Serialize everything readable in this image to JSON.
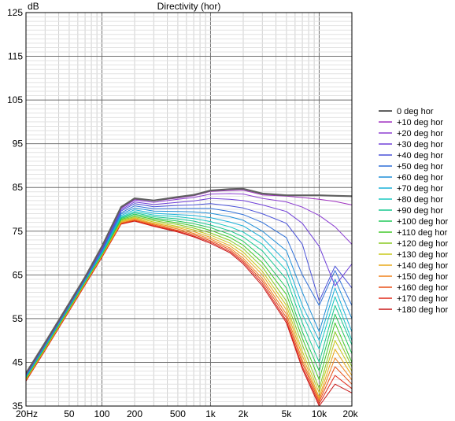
{
  "chart_data": {
    "type": "line",
    "title": "Directivity (hor)",
    "ylabel": "dB",
    "xlabel": "",
    "x_scale": "log",
    "xlim": [
      20,
      20000
    ],
    "ylim": [
      35,
      125
    ],
    "grid": true,
    "legend_position": "right",
    "x_tick_labels": [
      {
        "value": 20,
        "label": "20Hz"
      },
      {
        "value": 50,
        "label": "50"
      },
      {
        "value": 100,
        "label": "100"
      },
      {
        "value": 200,
        "label": "200"
      },
      {
        "value": 500,
        "label": "500"
      },
      {
        "value": 1000,
        "label": "1k"
      },
      {
        "value": 2000,
        "label": "2k"
      },
      {
        "value": 5000,
        "label": "5k"
      },
      {
        "value": 10000,
        "label": "10k"
      },
      {
        "value": 20000,
        "label": "20k"
      }
    ],
    "y_tick_labels": [
      125,
      115,
      105,
      95,
      85,
      75,
      65,
      55,
      45,
      35
    ],
    "series": [
      {
        "name": "0 deg hor",
        "color": "#606060",
        "x": [
          20,
          30,
          50,
          70,
          100,
          150,
          200,
          300,
          500,
          700,
          1000,
          1500,
          2000,
          3000,
          5000,
          7000,
          10000,
          14000,
          20000
        ],
        "y": [
          42.5,
          49.5,
          58.5,
          64.5,
          71.5,
          80.5,
          82.5,
          82,
          82.8,
          83.3,
          84.3,
          84.6,
          84.7,
          83.6,
          83.2,
          83.2,
          83.2,
          83.1,
          83.0
        ]
      },
      {
        "name": "+10 deg hor",
        "color": "#a030c0",
        "x": [
          20,
          30,
          50,
          70,
          100,
          150,
          200,
          300,
          500,
          700,
          1000,
          1500,
          2000,
          3000,
          5000,
          7000,
          10000,
          14000,
          20000
        ],
        "y": [
          42.4,
          49.4,
          58.4,
          64.4,
          71.4,
          80.4,
          82.3,
          81.9,
          82.6,
          83.1,
          84.1,
          84.3,
          84.4,
          83.3,
          83.0,
          82.7,
          82.3,
          81.8,
          81.0
        ]
      },
      {
        "name": "+20 deg hor",
        "color": "#8d3fd2",
        "x": [
          20,
          30,
          50,
          70,
          100,
          150,
          200,
          300,
          500,
          700,
          1000,
          1500,
          2000,
          3000,
          5000,
          7000,
          10000,
          14000,
          20000
        ],
        "y": [
          42.3,
          49.3,
          58.3,
          64.3,
          71.2,
          80.2,
          82.1,
          81.6,
          82.3,
          82.7,
          83.5,
          83.6,
          83.5,
          82.5,
          81.7,
          80.5,
          78.6,
          76.0,
          72.0
        ]
      },
      {
        "name": "+30 deg hor",
        "color": "#7040d8",
        "x": [
          20,
          30,
          50,
          70,
          100,
          150,
          200,
          300,
          500,
          700,
          1000,
          1500,
          2000,
          3000,
          5000,
          7000,
          10000,
          14000,
          20000
        ],
        "y": [
          42.2,
          49.2,
          58.2,
          64.2,
          71.0,
          79.9,
          81.7,
          81.1,
          81.6,
          81.9,
          82.5,
          82.3,
          82.0,
          81.0,
          79.5,
          76.8,
          71.5,
          62.5,
          67.5
        ]
      },
      {
        "name": "+40 deg hor",
        "color": "#4a52d8",
        "x": [
          20,
          30,
          50,
          70,
          100,
          150,
          200,
          300,
          500,
          700,
          1000,
          1500,
          2000,
          3000,
          5000,
          7000,
          10000,
          14000,
          20000
        ],
        "y": [
          42.1,
          49.1,
          58.1,
          64.1,
          70.8,
          79.6,
          81.3,
          80.6,
          80.9,
          81.0,
          81.3,
          80.8,
          80.3,
          79.0,
          76.8,
          72.0,
          59.0,
          67.0,
          62.0
        ]
      },
      {
        "name": "+50 deg hor",
        "color": "#2f6fd8",
        "x": [
          20,
          30,
          50,
          70,
          100,
          150,
          200,
          300,
          500,
          700,
          1000,
          1500,
          2000,
          3000,
          5000,
          7000,
          10000,
          14000,
          20000
        ],
        "y": [
          42.0,
          49.0,
          58.0,
          64.0,
          70.6,
          79.2,
          80.8,
          80.1,
          80.2,
          80.2,
          80.2,
          79.5,
          78.8,
          77.0,
          73.5,
          65.0,
          58.0,
          66.0,
          58.0
        ]
      },
      {
        "name": "+60 deg hor",
        "color": "#1f8fd8",
        "x": [
          20,
          30,
          50,
          70,
          100,
          150,
          200,
          300,
          500,
          700,
          1000,
          1500,
          2000,
          3000,
          5000,
          7000,
          10000,
          14000,
          20000
        ],
        "y": [
          41.9,
          48.9,
          57.9,
          63.9,
          70.4,
          78.9,
          80.3,
          79.6,
          79.5,
          79.4,
          79.1,
          78.3,
          77.5,
          75.0,
          70.5,
          61.0,
          52.0,
          64.0,
          55.0
        ]
      },
      {
        "name": "+70 deg hor",
        "color": "#1ab0d8",
        "x": [
          20,
          30,
          50,
          70,
          100,
          150,
          200,
          300,
          500,
          700,
          1000,
          1500,
          2000,
          3000,
          5000,
          7000,
          10000,
          14000,
          20000
        ],
        "y": [
          41.8,
          48.8,
          57.8,
          63.8,
          70.2,
          78.6,
          79.9,
          79.1,
          78.8,
          78.6,
          78.1,
          77.1,
          76.2,
          73.5,
          68.0,
          58.0,
          50.0,
          62.0,
          52.0
        ]
      },
      {
        "name": "+80 deg hor",
        "color": "#18c8c0",
        "x": [
          20,
          30,
          50,
          70,
          100,
          150,
          200,
          300,
          500,
          700,
          1000,
          1500,
          2000,
          3000,
          5000,
          7000,
          10000,
          14000,
          20000
        ],
        "y": [
          41.7,
          48.7,
          57.7,
          63.7,
          70.0,
          78.3,
          79.5,
          78.7,
          78.3,
          77.9,
          77.2,
          76.0,
          74.8,
          72.0,
          66.0,
          56.0,
          48.0,
          60.0,
          50.0
        ]
      },
      {
        "name": "+90 deg hor",
        "color": "#18c890",
        "x": [
          20,
          30,
          50,
          70,
          100,
          150,
          200,
          300,
          500,
          700,
          1000,
          1500,
          2000,
          3000,
          5000,
          7000,
          10000,
          14000,
          20000
        ],
        "y": [
          41.6,
          48.6,
          57.6,
          63.6,
          69.9,
          78.1,
          79.2,
          78.3,
          77.8,
          77.3,
          76.4,
          75.1,
          73.7,
          70.5,
          64.0,
          54.0,
          45.0,
          58.0,
          49.0
        ]
      },
      {
        "name": "+100 deg hor",
        "color": "#20c858",
        "x": [
          20,
          30,
          50,
          70,
          100,
          150,
          200,
          300,
          500,
          700,
          1000,
          1500,
          2000,
          3000,
          5000,
          7000,
          10000,
          14000,
          20000
        ],
        "y": [
          41.5,
          48.5,
          57.5,
          63.5,
          69.8,
          77.9,
          78.9,
          78.0,
          77.3,
          76.7,
          75.8,
          74.3,
          72.7,
          69.0,
          62.0,
          52.0,
          43.0,
          56.0,
          47.0
        ]
      },
      {
        "name": "+110 deg hor",
        "color": "#40c828",
        "x": [
          20,
          30,
          50,
          70,
          100,
          150,
          200,
          300,
          500,
          700,
          1000,
          1500,
          2000,
          3000,
          5000,
          7000,
          10000,
          14000,
          20000
        ],
        "y": [
          41.4,
          48.4,
          57.4,
          63.4,
          69.7,
          77.7,
          78.6,
          77.7,
          76.9,
          76.2,
          75.2,
          73.6,
          71.8,
          67.8,
          60.5,
          50.5,
          41.0,
          54.0,
          45.0
        ]
      },
      {
        "name": "+120 deg hor",
        "color": "#88c820",
        "x": [
          20,
          30,
          50,
          70,
          100,
          150,
          200,
          300,
          500,
          700,
          1000,
          1500,
          2000,
          3000,
          5000,
          7000,
          10000,
          14000,
          20000
        ],
        "y": [
          41.3,
          48.3,
          57.3,
          63.3,
          69.6,
          77.5,
          78.3,
          77.4,
          76.5,
          75.7,
          74.6,
          72.9,
          71.0,
          66.8,
          59.0,
          49.0,
          39.0,
          52.0,
          44.0
        ]
      },
      {
        "name": "+130 deg hor",
        "color": "#c8c818",
        "x": [
          20,
          30,
          50,
          70,
          100,
          150,
          200,
          300,
          500,
          700,
          1000,
          1500,
          2000,
          3000,
          5000,
          7000,
          10000,
          14000,
          20000
        ],
        "y": [
          41.2,
          48.2,
          57.2,
          63.2,
          69.5,
          77.3,
          78.1,
          77.1,
          76.1,
          75.3,
          74.1,
          72.3,
          70.2,
          65.8,
          58.0,
          47.5,
          38.0,
          50.0,
          43.0
        ]
      },
      {
        "name": "+140 deg hor",
        "color": "#e8a818",
        "x": [
          20,
          30,
          50,
          70,
          100,
          150,
          200,
          300,
          500,
          700,
          1000,
          1500,
          2000,
          3000,
          5000,
          7000,
          10000,
          14000,
          20000
        ],
        "y": [
          41.1,
          48.1,
          57.1,
          63.1,
          69.4,
          77.1,
          77.9,
          76.8,
          75.8,
          74.9,
          73.6,
          71.7,
          69.5,
          65.0,
          57.0,
          46.5,
          37.0,
          48.0,
          42.0
        ]
      },
      {
        "name": "+150 deg hor",
        "color": "#f08018",
        "x": [
          20,
          30,
          50,
          70,
          100,
          150,
          200,
          300,
          500,
          700,
          1000,
          1500,
          2000,
          3000,
          5000,
          7000,
          10000,
          14000,
          20000
        ],
        "y": [
          41.0,
          48.0,
          57.0,
          63.0,
          69.3,
          76.9,
          77.7,
          76.6,
          75.5,
          74.5,
          73.2,
          71.2,
          68.8,
          64.2,
          56.0,
          45.5,
          36.5,
          46.0,
          41.0
        ]
      },
      {
        "name": "+160 deg hor",
        "color": "#e85018",
        "x": [
          20,
          30,
          50,
          70,
          100,
          150,
          200,
          300,
          500,
          700,
          1000,
          1500,
          2000,
          3000,
          5000,
          7000,
          10000,
          14000,
          20000
        ],
        "y": [
          40.9,
          47.9,
          56.9,
          62.9,
          69.2,
          76.8,
          77.5,
          76.4,
          75.2,
          74.2,
          72.8,
          70.8,
          68.3,
          63.6,
          55.2,
          44.8,
          36.0,
          44.0,
          40.0
        ]
      },
      {
        "name": "+170 deg hor",
        "color": "#e02818",
        "x": [
          20,
          30,
          50,
          70,
          100,
          150,
          200,
          300,
          500,
          700,
          1000,
          1500,
          2000,
          3000,
          5000,
          7000,
          10000,
          14000,
          20000
        ],
        "y": [
          40.8,
          47.8,
          56.8,
          62.8,
          69.1,
          76.7,
          77.4,
          76.2,
          75.0,
          73.9,
          72.5,
          70.4,
          67.9,
          63.0,
          54.5,
          44.0,
          35.5,
          42.0,
          39.0
        ]
      },
      {
        "name": "+180 deg hor",
        "color": "#c81818",
        "x": [
          20,
          30,
          50,
          70,
          100,
          150,
          200,
          300,
          500,
          700,
          1000,
          1500,
          2000,
          3000,
          5000,
          7000,
          10000,
          14000,
          20000
        ],
        "y": [
          40.7,
          47.7,
          56.7,
          62.7,
          69.0,
          76.6,
          77.3,
          76.1,
          74.8,
          73.7,
          72.2,
          70.1,
          67.5,
          62.5,
          54.0,
          43.5,
          35.0,
          40.0,
          38.0
        ]
      }
    ]
  }
}
